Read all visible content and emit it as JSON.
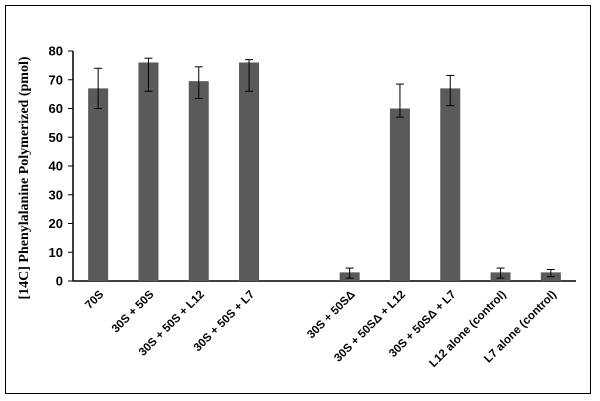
{
  "chart_data": {
    "type": "bar",
    "ylabel": "[14C] Phenylalanine Polymerized (pmol)",
    "xlabel": "",
    "title": "",
    "ylim": [
      0,
      80
    ],
    "yticks": [
      0,
      10,
      20,
      30,
      40,
      50,
      60,
      70,
      80
    ],
    "grid": false,
    "legend": "none",
    "bar_color": "#5a5a5a",
    "categories": [
      "70S",
      "30S + 50S",
      "30S + 50S + L12",
      "30S + 50S + L7",
      "",
      "30S + 50SΔ",
      "30S + 50SΔ + L12",
      "30S + 50SΔ + L7",
      "L12 alone (control)",
      "L7 alone (control)"
    ],
    "values": [
      67,
      76,
      69.5,
      76,
      null,
      3,
      60,
      67,
      3,
      3
    ],
    "error_high": [
      7,
      1.5,
      5,
      1,
      null,
      1.5,
      8.5,
      4.5,
      1.5,
      1
    ],
    "error_low": [
      7,
      10,
      6,
      10,
      null,
      2,
      3,
      6,
      2,
      1.5
    ]
  }
}
